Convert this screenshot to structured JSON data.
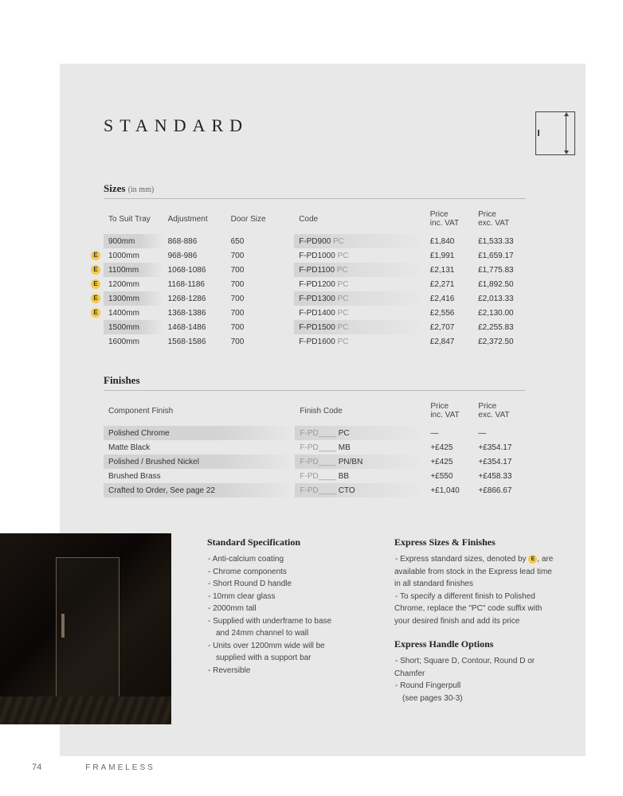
{
  "title": "STANDARD",
  "sizes_heading": "Sizes",
  "sizes_sub": "(in mm)",
  "sizes_columns": [
    "To Suit Tray",
    "Adjustment",
    "Door Size",
    "Code",
    "Price inc. VAT",
    "Price exc. VAT"
  ],
  "sizes_rows": [
    {
      "express": false,
      "tray": "900mm",
      "adj": "868-886",
      "door": "650",
      "code": "F-PD900",
      "suffix": "PC",
      "inc": "£1,840",
      "exc": "£1,533.33"
    },
    {
      "express": true,
      "tray": "1000mm",
      "adj": "968-986",
      "door": "700",
      "code": "F-PD1000",
      "suffix": "PC",
      "inc": "£1,991",
      "exc": "£1,659.17"
    },
    {
      "express": true,
      "tray": "1100mm",
      "adj": "1068-1086",
      "door": "700",
      "code": "F-PD1100",
      "suffix": "PC",
      "inc": "£2,131",
      "exc": "£1,775.83"
    },
    {
      "express": true,
      "tray": "1200mm",
      "adj": "1168-1186",
      "door": "700",
      "code": "F-PD1200",
      "suffix": "PC",
      "inc": "£2,271",
      "exc": "£1,892.50"
    },
    {
      "express": true,
      "tray": "1300mm",
      "adj": "1268-1286",
      "door": "700",
      "code": "F-PD1300",
      "suffix": "PC",
      "inc": "£2,416",
      "exc": "£2,013.33"
    },
    {
      "express": true,
      "tray": "1400mm",
      "adj": "1368-1386",
      "door": "700",
      "code": "F-PD1400",
      "suffix": "PC",
      "inc": "£2,556",
      "exc": "£2,130.00"
    },
    {
      "express": false,
      "tray": "1500mm",
      "adj": "1468-1486",
      "door": "700",
      "code": "F-PD1500",
      "suffix": "PC",
      "inc": "£2,707",
      "exc": "£2,255.83"
    },
    {
      "express": false,
      "tray": "1600mm",
      "adj": "1568-1586",
      "door": "700",
      "code": "F-PD1600",
      "suffix": "PC",
      "inc": "£2,847",
      "exc": "£2,372.50"
    }
  ],
  "finishes_heading": "Finishes",
  "finishes_columns": [
    "Component Finish",
    "Finish Code",
    "Price inc. VAT",
    "Price exc. VAT"
  ],
  "finish_code_prefix": "F-PD____",
  "finishes_rows": [
    {
      "name": "Polished Chrome",
      "suffix": "PC",
      "inc": "—",
      "exc": "—"
    },
    {
      "name": "Matte Black",
      "suffix": "MB",
      "inc": "+£425",
      "exc": "+£354.17"
    },
    {
      "name": "Polished / Brushed Nickel",
      "suffix": "PN/BN",
      "inc": "+£425",
      "exc": "+£354.17"
    },
    {
      "name": "Brushed Brass",
      "suffix": "BB",
      "inc": "+£550",
      "exc": "+£458.33"
    },
    {
      "name": "Crafted to Order, See page 22",
      "suffix": "CTO",
      "inc": "+£1,040",
      "exc": "+£866.67"
    }
  ],
  "spec": {
    "heading": "Standard Specification",
    "items": [
      "Anti-calcium coating",
      "Chrome components",
      "Short Round D handle",
      "10mm clear glass",
      "2000mm tall",
      "Supplied with underframe to base",
      "and 24mm channel to wall",
      "Units over 1200mm wide will be",
      "supplied with a support bar",
      "Reversible"
    ],
    "indent_lines": [
      6,
      8
    ]
  },
  "express": {
    "heading1": "Express Sizes & Finishes",
    "line1a": "Express standard sizes, denoted by ",
    "line1b": ", are available from stock in the Express lead time in all standard finishes",
    "line2": "To specify a different finish to Polished Chrome, replace the \"PC\" code suffix with your desired finish and add its price",
    "heading2": "Express Handle Options",
    "h_items": [
      "Short; Square D, Contour, Round D or Chamfer",
      "Round Fingerpull"
    ],
    "h_note": "(see pages 30-3)"
  },
  "footer": {
    "page": "74",
    "label": "FRAMELESS"
  },
  "colors": {
    "page_bg": "#e8e8e8",
    "badge": "#f5c945",
    "text": "#333333",
    "muted": "#999999"
  }
}
